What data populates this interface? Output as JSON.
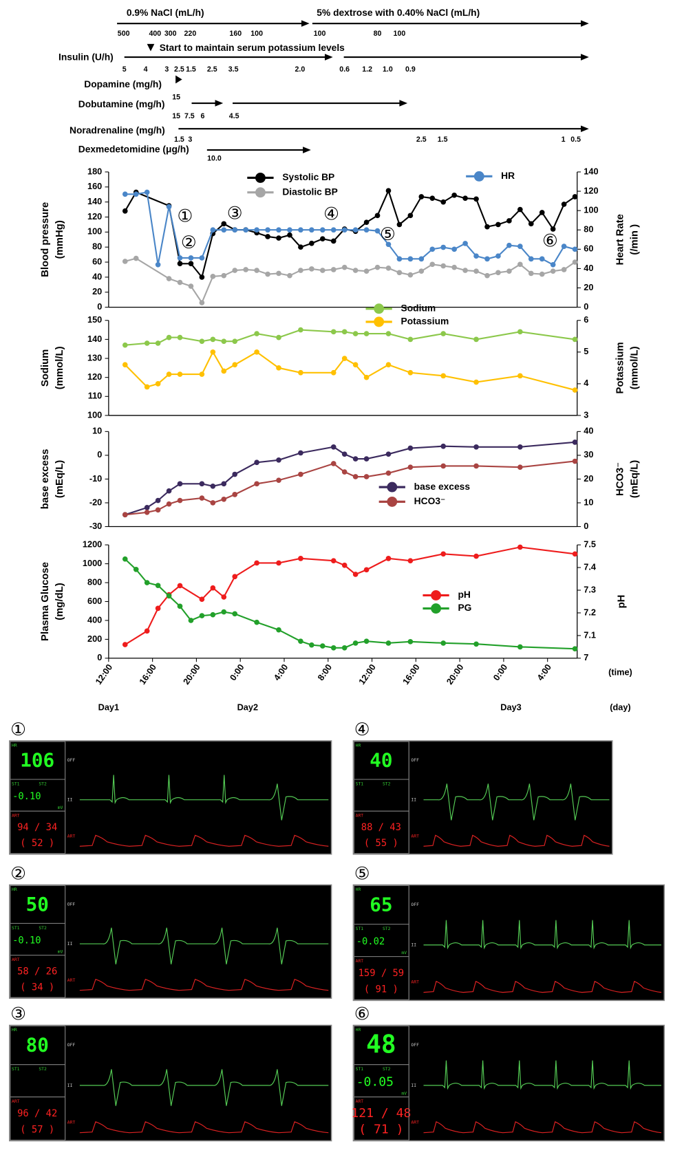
{
  "drugs": {
    "note": "Start to maintain serum potassium levels",
    "items": [
      {
        "name": "0.9% NaCl (mL/h)",
        "doses": [
          "500",
          "400",
          "300",
          "220",
          "160",
          "100"
        ]
      },
      {
        "name": "5% dextrose with 0.40% NaCl (mL/h)",
        "doses": [
          "100",
          "80",
          "100"
        ]
      },
      {
        "name": "Insulin (U/h)",
        "doses": [
          "5",
          "4",
          "3",
          "2.5",
          "1.5",
          "2.5",
          "3.5",
          "2.0",
          "0.6",
          "1.2",
          "1.0",
          "0.9"
        ]
      },
      {
        "name": "Dopamine (mg/h)",
        "doses": []
      },
      {
        "name": "Dobutamine (mg/h)",
        "doses": [
          "15",
          "15",
          "7.5",
          "6",
          "4.5"
        ]
      },
      {
        "name": "Noradrenaline (mg/h)",
        "doses": [
          "1.5",
          "3",
          "2.5",
          "1.5",
          "1",
          "0.5"
        ]
      },
      {
        "name": "Dexmedetomidine (μg/h)",
        "doses": [
          "10.0"
        ]
      }
    ]
  },
  "chart_data": [
    {
      "type": "line",
      "y_label": [
        "Blood pressure",
        "(mmHg)"
      ],
      "y2_label": [
        "Heart Rate",
        "(/min )"
      ],
      "xlim": [
        12,
        54.7
      ],
      "ylim": [
        0,
        180
      ],
      "yticks": [
        0,
        20,
        40,
        60,
        80,
        100,
        120,
        140,
        160,
        180
      ],
      "y2lim": [
        0,
        140
      ],
      "y2ticks": [
        0,
        20,
        40,
        60,
        80,
        100,
        120,
        140
      ],
      "annotations": [
        "①",
        "②",
        "③",
        "④",
        "⑤",
        "⑥"
      ],
      "series": [
        {
          "name": "Systolic BP",
          "color": "#000000",
          "x": [
            13.5,
            14.5,
            17.5,
            18.5,
            19.5,
            20.5,
            21.5,
            22.5,
            23.5,
            24.5,
            25.5,
            26.5,
            27.5,
            28.5,
            29.5,
            30.5,
            31.5,
            32.5,
            33.5,
            34.5,
            35.5,
            36.5,
            37.5,
            38.5,
            39.5,
            40.5,
            41.5,
            42.5,
            43.5,
            44.5,
            45.5,
            46.5,
            47.5,
            48.5,
            49.5,
            50.5,
            51.5,
            52.5,
            53.5,
            54.5
          ],
          "values": [
            128,
            153,
            135,
            58,
            58,
            40,
            98,
            111,
            103,
            103,
            99,
            94,
            92,
            96,
            80,
            85,
            91,
            88,
            104,
            101,
            113,
            122,
            155,
            110,
            122,
            147,
            145,
            140,
            149,
            145,
            144,
            107,
            110,
            115,
            130,
            111,
            126,
            104,
            137,
            147
          ]
        },
        {
          "name": "Diastolic BP",
          "color": "#a6a6a6",
          "x": [
            13.5,
            14.5,
            17.5,
            18.5,
            19.5,
            20.5,
            21.5,
            22.5,
            23.5,
            24.5,
            25.5,
            26.5,
            27.5,
            28.5,
            29.5,
            30.5,
            31.5,
            32.5,
            33.5,
            34.5,
            35.5,
            36.5,
            37.5,
            38.5,
            39.5,
            40.5,
            41.5,
            42.5,
            43.5,
            44.5,
            45.5,
            46.5,
            47.5,
            48.5,
            49.5,
            50.5,
            51.5,
            52.5,
            53.5,
            54.5
          ],
          "values": [
            61,
            65,
            38,
            33,
            28,
            6,
            41,
            42,
            49,
            50,
            49,
            44,
            45,
            42,
            49,
            51,
            49,
            50,
            53,
            49,
            48,
            53,
            52,
            46,
            43,
            48,
            57,
            55,
            53,
            49,
            48,
            42,
            46,
            48,
            57,
            45,
            44,
            48,
            50,
            60
          ]
        },
        {
          "name": "HR",
          "color": "#4a86c8",
          "axis": "y2",
          "x": [
            13.5,
            14.5,
            15.5,
            16.5,
            17.5,
            18.5,
            19.5,
            20.5,
            21.5,
            22.5,
            23.5,
            24.5,
            25.5,
            26.5,
            27.5,
            28.5,
            29.5,
            30.5,
            31.5,
            32.5,
            33.5,
            34.5,
            35.5,
            36.5,
            37.5,
            38.5,
            39.5,
            40.5,
            41.5,
            42.5,
            43.5,
            44.5,
            45.5,
            46.5,
            47.5,
            48.5,
            49.5,
            50.5,
            51.5,
            52.5,
            53.5,
            54.5
          ],
          "values": [
            117,
            117,
            119,
            44,
            104,
            51,
            51,
            51,
            80,
            80,
            80,
            80,
            80,
            80,
            80,
            80,
            80,
            80,
            80,
            80,
            80,
            80,
            80,
            79,
            65,
            50,
            50,
            50,
            60,
            62,
            60,
            66,
            53,
            50,
            53,
            64,
            63,
            50,
            50,
            44,
            63,
            60
          ]
        }
      ]
    },
    {
      "type": "line",
      "y_label": [
        "Sodium",
        "(mmol/L)"
      ],
      "y2_label": [
        "Potassium",
        "(mmol/L)"
      ],
      "xlim": [
        12,
        54.7
      ],
      "ylim": [
        100,
        150
      ],
      "yticks": [
        100,
        110,
        120,
        130,
        140,
        150
      ],
      "y2lim": [
        3,
        6
      ],
      "y2ticks": [
        3,
        4,
        5,
        6
      ],
      "series": [
        {
          "name": "Sodium",
          "color": "#8cc84b",
          "x": [
            13.5,
            15.5,
            16.5,
            17.5,
            18.5,
            20.5,
            21.5,
            22.5,
            23.5,
            25.5,
            27.5,
            29.5,
            32.5,
            33.5,
            34.5,
            35.5,
            37.5,
            39.5,
            42.5,
            45.5,
            49.5,
            54.5
          ],
          "values": [
            137,
            138,
            138,
            141,
            141,
            139,
            140,
            139,
            139,
            143,
            141,
            145,
            144,
            144,
            143,
            143,
            143,
            140,
            143,
            140,
            144,
            140
          ]
        },
        {
          "name": "Potassium",
          "color": "#ffc000",
          "axis": "y2",
          "x": [
            13.5,
            15.5,
            16.5,
            17.5,
            18.5,
            20.5,
            21.5,
            22.5,
            23.5,
            25.5,
            27.5,
            29.5,
            32.5,
            33.5,
            34.5,
            35.5,
            37.5,
            39.5,
            42.5,
            45.5,
            49.5,
            54.5
          ],
          "values": [
            4.6,
            3.9,
            4.0,
            4.3,
            4.3,
            4.3,
            5.0,
            4.4,
            4.6,
            5.0,
            4.5,
            4.35,
            4.35,
            4.8,
            4.6,
            4.2,
            4.6,
            4.35,
            4.25,
            4.05,
            4.25,
            3.8
          ]
        }
      ]
    },
    {
      "type": "line",
      "y_label": [
        "base excess",
        "(mEq/L)"
      ],
      "y2_label": [
        "HCO3⁻",
        "(mEq/L)"
      ],
      "xlim": [
        12,
        54.7
      ],
      "ylim": [
        -30,
        10
      ],
      "yticks": [
        -30,
        -20,
        -10,
        0,
        10
      ],
      "y2lim": [
        0,
        40
      ],
      "y2ticks": [
        0,
        10,
        20,
        30,
        40
      ],
      "series": [
        {
          "name": "base excess",
          "color": "#3b2a5e",
          "x": [
            13.5,
            15.5,
            16.5,
            17.5,
            18.5,
            20.5,
            21.5,
            22.5,
            23.5,
            25.5,
            27.5,
            29.5,
            32.5,
            33.5,
            34.5,
            35.5,
            37.5,
            39.5,
            42.5,
            45.5,
            49.5,
            54.5
          ],
          "values": [
            -25,
            -22,
            -19,
            -15,
            -12,
            -12,
            -13,
            -12,
            -8,
            -3,
            -2,
            1,
            3.5,
            0.5,
            -1.5,
            -1.5,
            0.5,
            3,
            3.8,
            3.5,
            3.5,
            5.5
          ]
        },
        {
          "name": "HCO3⁻",
          "color": "#a94442",
          "axis": "y2",
          "x": [
            13.5,
            15.5,
            16.5,
            17.5,
            18.5,
            20.5,
            21.5,
            22.5,
            23.5,
            25.5,
            27.5,
            29.5,
            32.5,
            33.5,
            34.5,
            35.5,
            37.5,
            39.5,
            42.5,
            45.5,
            49.5,
            54.5
          ],
          "values": [
            5,
            6,
            7,
            9.5,
            11,
            12,
            10,
            11.5,
            13.5,
            18,
            19.5,
            22,
            26.5,
            23,
            21,
            21,
            22.5,
            25,
            25.5,
            25.5,
            25,
            27.5
          ]
        }
      ]
    },
    {
      "type": "line",
      "y_label": [
        "Plasma Glucose",
        "(mg/dL)"
      ],
      "y2_label": [
        "pH"
      ],
      "xlim": [
        12,
        54.7
      ],
      "ylim": [
        0,
        1200
      ],
      "yticks": [
        0,
        200,
        400,
        600,
        800,
        1000,
        1200
      ],
      "y2lim": [
        7,
        7.5
      ],
      "y2ticks": [
        7,
        7.1,
        7.2,
        7.3,
        7.4,
        7.5
      ],
      "xticks": [
        {
          "value": 12,
          "label": "12:00"
        },
        {
          "value": 16,
          "label": "16:00"
        },
        {
          "value": 20,
          "label": "20:00"
        },
        {
          "value": 24,
          "label": "0:00"
        },
        {
          "value": 28,
          "label": "4:00"
        },
        {
          "value": 32,
          "label": "8:00"
        },
        {
          "value": 36,
          "label": "12:00"
        },
        {
          "value": 40,
          "label": "16:00"
        },
        {
          "value": 44,
          "label": "20:00"
        },
        {
          "value": 48,
          "label": "0:00"
        },
        {
          "value": 52,
          "label": "4:00"
        }
      ],
      "x_label": "(time)",
      "day_ticks": [
        {
          "value": 12,
          "label": "Day1"
        },
        {
          "value": 24,
          "label": "Day2"
        },
        {
          "value": 48,
          "label": "Day3"
        }
      ],
      "day_label": "(day)",
      "series": [
        {
          "name": "pH",
          "color": "#ee1c1c",
          "axis": "y2",
          "x": [
            13.5,
            15.5,
            16.5,
            17.5,
            18.5,
            20.5,
            21.5,
            22.5,
            23.5,
            25.5,
            27.5,
            29.5,
            32.5,
            33.5,
            34.5,
            35.5,
            37.5,
            39.5,
            42.5,
            45.5,
            49.5,
            54.5
          ],
          "values": [
            7.06,
            7.12,
            7.22,
            7.28,
            7.32,
            7.26,
            7.31,
            7.27,
            7.36,
            7.42,
            7.42,
            7.44,
            7.43,
            7.41,
            7.37,
            7.39,
            7.44,
            7.43,
            7.46,
            7.45,
            7.49,
            7.46
          ]
        },
        {
          "name": "PG",
          "color": "#22a02a",
          "x": [
            13.5,
            14.5,
            15.5,
            16.5,
            17.5,
            18.5,
            19.5,
            20.5,
            21.5,
            22.5,
            23.5,
            25.5,
            27.5,
            29.5,
            30.5,
            31.5,
            32.5,
            33.5,
            34.5,
            35.5,
            37.5,
            39.5,
            42.5,
            45.5,
            49.5,
            54.5
          ],
          "values": [
            1050,
            940,
            800,
            770,
            660,
            550,
            400,
            450,
            460,
            490,
            470,
            380,
            300,
            180,
            140,
            130,
            110,
            110,
            160,
            180,
            160,
            175,
            160,
            150,
            120,
            100
          ]
        }
      ]
    }
  ],
  "monitors": {
    "labels": {
      "hr": "HR",
      "st1": "ST1",
      "st2": "ST2",
      "mv": "mV",
      "art": "ART",
      "off": "OFF",
      "lead": "II"
    },
    "panels": [
      {
        "tag": "①",
        "hr": "106",
        "st": "-0.10",
        "bp": "94 / 34",
        "map": "( 52 )"
      },
      {
        "tag": "②",
        "hr": "50",
        "st": "-0.10",
        "bp": "58 / 26",
        "map": "( 34 )"
      },
      {
        "tag": "③",
        "hr": "80",
        "bp": "96 / 42",
        "map": "( 57 )"
      },
      {
        "tag": "④",
        "hr": "40",
        "bp": "88 / 43",
        "map": "( 55 )"
      },
      {
        "tag": "⑤",
        "hr": "65",
        "st": "-0.02",
        "bp": "159 / 59",
        "map": "( 91 )"
      },
      {
        "tag": "⑥",
        "hr": "48",
        "st": "-0.05",
        "bp": "121 / 48",
        "map": "( 71 )"
      }
    ]
  }
}
